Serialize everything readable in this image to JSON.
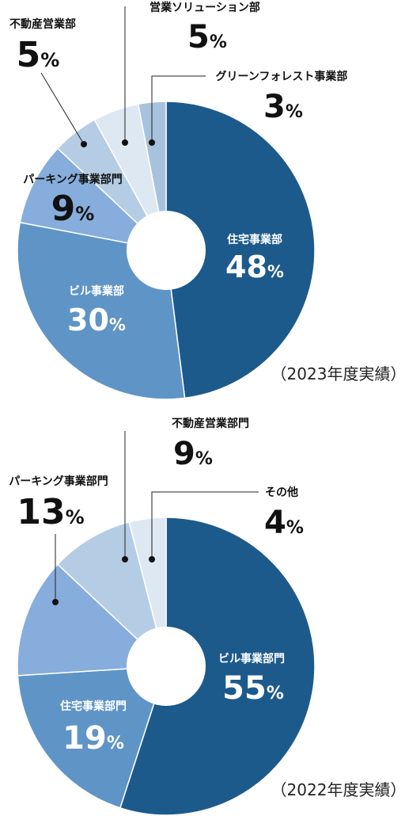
{
  "chart_data": [
    {
      "type": "pie",
      "caption": "（2023年度実績）",
      "unit": "%",
      "slices": [
        {
          "label": "住宅事業部",
          "value": 48,
          "color": "#1d5a8c"
        },
        {
          "label": "ビル事業部",
          "value": 30,
          "color": "#5f94c6"
        },
        {
          "label": "パーキング事業部門",
          "value": 9,
          "color": "#86addb"
        },
        {
          "label": "不動産営業部",
          "value": 5,
          "color": "#b5cde4"
        },
        {
          "label": "営業ソリューション部",
          "value": 5,
          "color": "#dde8f3"
        },
        {
          "label": "グリーンフォレスト事業部",
          "value": 3,
          "color": "#a7c2dc"
        }
      ]
    },
    {
      "type": "pie",
      "caption": "（2022年度実績）",
      "unit": "%",
      "slices": [
        {
          "label": "ビル事業部門",
          "value": 55,
          "color": "#1d5a8c"
        },
        {
          "label": "住宅事業部門",
          "value": 19,
          "color": "#5f94c6"
        },
        {
          "label": "パーキング事業部門",
          "value": 13,
          "color": "#86addb"
        },
        {
          "label": "不動産営業部門",
          "value": 9,
          "color": "#b5cde4"
        },
        {
          "label": "その他",
          "value": 4,
          "color": "#dde8f3"
        }
      ]
    }
  ]
}
